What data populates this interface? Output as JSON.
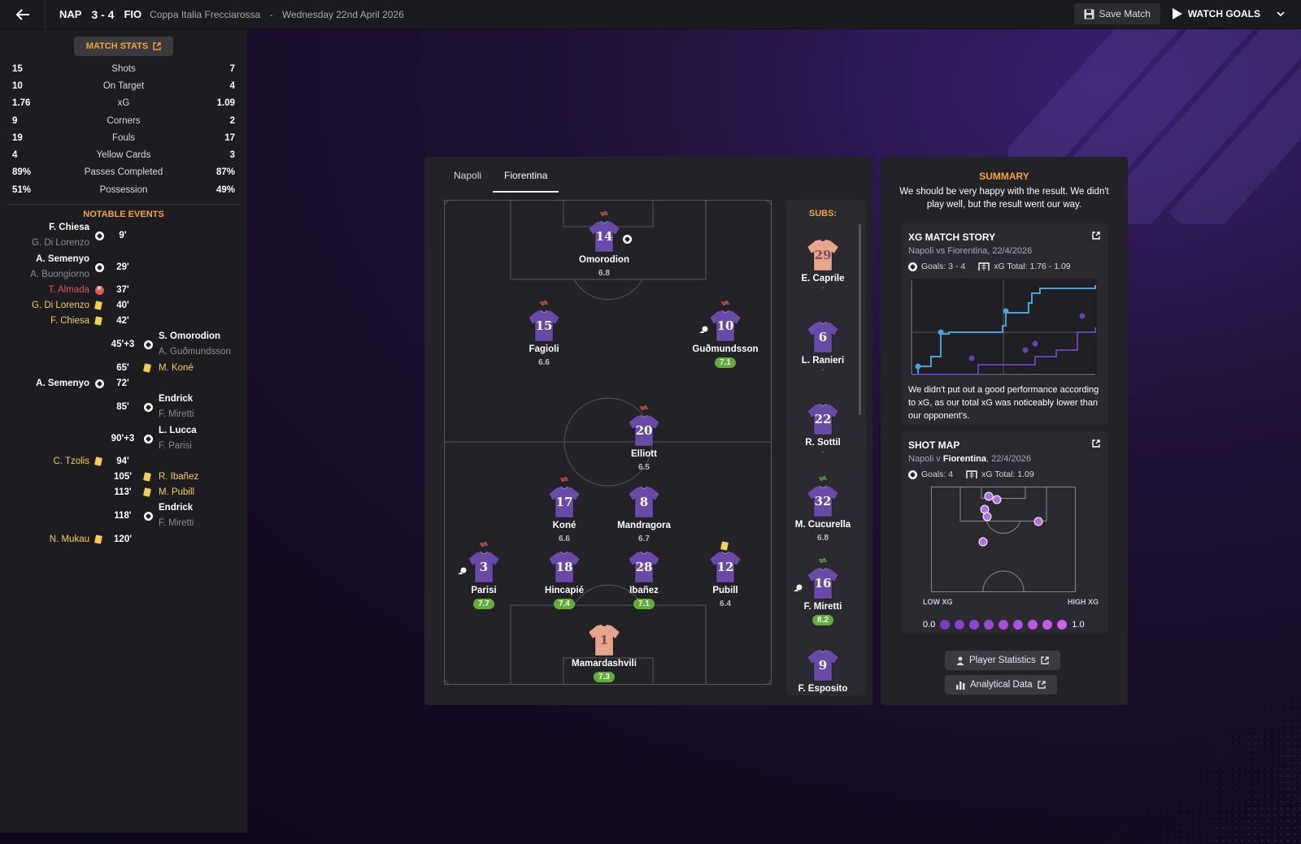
{
  "header": {
    "home_short": "NAP",
    "score": "3 - 4",
    "away_short": "FIO",
    "competition": "Coppa Italia Frecciarossa",
    "separator": "-",
    "date": "Wednesday 22nd April 2026",
    "save_label": "Save Match",
    "watch_label": "WATCH GOALS"
  },
  "match_stats": {
    "button_label": "MATCH STATS",
    "rows": [
      {
        "home": "15",
        "label": "Shots",
        "away": "7"
      },
      {
        "home": "10",
        "label": "On Target",
        "away": "4"
      },
      {
        "home": "1.76",
        "label": "xG",
        "away": "1.09"
      },
      {
        "home": "9",
        "label": "Corners",
        "away": "2"
      },
      {
        "home": "19",
        "label": "Fouls",
        "away": "17"
      },
      {
        "home": "4",
        "label": "Yellow Cards",
        "away": "3"
      },
      {
        "home": "89%",
        "label": "Passes Completed",
        "away": "87%"
      },
      {
        "home": "51%",
        "label": "Possession",
        "away": "49%"
      }
    ]
  },
  "notable_events": {
    "title": "NOTABLE EVENTS",
    "items": [
      {
        "side": "home",
        "type": "goal",
        "minute": "9'",
        "main": "F. Chiesa",
        "assist": "G. Di Lorenzo"
      },
      {
        "side": "home",
        "type": "goal",
        "minute": "29'",
        "main": "A. Semenyo",
        "assist": "A. Buongiorno"
      },
      {
        "side": "home",
        "type": "red",
        "minute": "37'",
        "main": "T. Almada",
        "assist": ""
      },
      {
        "side": "home",
        "type": "yellow",
        "minute": "40'",
        "main": "G. Di Lorenzo",
        "assist": ""
      },
      {
        "side": "home",
        "type": "yellow",
        "minute": "42'",
        "main": "F. Chiesa",
        "assist": ""
      },
      {
        "side": "away",
        "type": "goal",
        "minute": "45'+3",
        "main": "S. Omorodion",
        "assist": "A. Guðmundsson"
      },
      {
        "side": "away",
        "type": "yellow",
        "minute": "65'",
        "main": "M. Koné",
        "assist": ""
      },
      {
        "side": "home",
        "type": "goal",
        "minute": "72'",
        "main": "A. Semenyo",
        "assist": ""
      },
      {
        "side": "away",
        "type": "goal",
        "minute": "85'",
        "main": "Endrick",
        "assist": "F. Miretti"
      },
      {
        "side": "away",
        "type": "goal",
        "minute": "90'+3",
        "main": "L. Lucca",
        "assist": "F. Parisi"
      },
      {
        "side": "home",
        "type": "yellow",
        "minute": "94'",
        "main": "C. Tzolis",
        "assist": ""
      },
      {
        "side": "away",
        "type": "yellow",
        "minute": "105'",
        "main": "R. Ibañez",
        "assist": ""
      },
      {
        "side": "away",
        "type": "yellow",
        "minute": "113'",
        "main": "M. Pubill",
        "assist": ""
      },
      {
        "side": "away",
        "type": "goal",
        "minute": "118'",
        "main": "Endrick",
        "assist": "F. Miretti"
      },
      {
        "side": "home",
        "type": "yellow",
        "minute": "120'",
        "main": "N. Mukau",
        "assist": ""
      }
    ]
  },
  "tabs": [
    "Napoli",
    "Fiorentina"
  ],
  "lineup": {
    "players": [
      {
        "num": "14",
        "name": "Omorodion",
        "rating": "6.8",
        "good": false,
        "subbed": true,
        "goal": true,
        "gk": false
      },
      {
        "num": "15",
        "name": "Fagioli",
        "rating": "6.6",
        "good": false,
        "subbed": true,
        "goal": false,
        "gk": false
      },
      {
        "num": "10",
        "name": "Guðmundsson",
        "rating": "7.1",
        "good": true,
        "subbed": true,
        "assist": true,
        "gk": false
      },
      {
        "num": "20",
        "name": "Elliott",
        "rating": "6.5",
        "good": false,
        "subbed": true,
        "gk": false
      },
      {
        "num": "17",
        "name": "Koné",
        "rating": "6.6",
        "good": false,
        "subbed": true,
        "gk": false
      },
      {
        "num": "8",
        "name": "Mandragora",
        "rating": "6.7",
        "good": false,
        "gk": false
      },
      {
        "num": "3",
        "name": "Parisi",
        "rating": "7.7",
        "good": true,
        "subbed": true,
        "assist": true,
        "gk": false
      },
      {
        "num": "18",
        "name": "Hincapié",
        "rating": "7.4",
        "good": true,
        "gk": false
      },
      {
        "num": "28",
        "name": "Ibañez",
        "rating": "7.1",
        "good": true,
        "gk": false
      },
      {
        "num": "12",
        "name": "Pubill",
        "rating": "6.4",
        "good": false,
        "yellow": true,
        "gk": false
      },
      {
        "num": "1",
        "name": "Mamardashvili",
        "rating": "7.3",
        "good": true,
        "gk": true
      }
    ]
  },
  "subs": {
    "title": "SUBS:",
    "players": [
      {
        "num": "29",
        "name": "E. Caprile",
        "rating": "-",
        "good": false,
        "gk": true
      },
      {
        "num": "6",
        "name": "L. Ranieri",
        "rating": "-",
        "good": false,
        "gk": false
      },
      {
        "num": "22",
        "name": "R. Sottil",
        "rating": "-",
        "good": false,
        "gk": false
      },
      {
        "num": "32",
        "name": "M. Cucurella",
        "rating": "6.8",
        "good": false,
        "subin": true,
        "gk": false
      },
      {
        "num": "16",
        "name": "F. Miretti",
        "rating": "8.2",
        "good": true,
        "subin": true,
        "assist": true,
        "gk": false
      },
      {
        "num": "9",
        "name": "F. Esposito",
        "rating": "",
        "good": false,
        "gk": false
      }
    ]
  },
  "summary": {
    "title": "SUMMARY",
    "text": "We should be very happy with the result. We didn't play well, but the result went our way."
  },
  "xg_story": {
    "title": "XG MATCH STORY",
    "subtitle": "Napoli vs Fiorentina, 22/4/2026",
    "goals": "Goals: 3 - 4",
    "xg_total": "xG Total: 1.76 - 1.09",
    "text": "We didn't put out a good performance according to xG, as our total xG was noticeably lower than our opponent's."
  },
  "shot_map": {
    "title": "SHOT MAP",
    "subtitle_pre": "Napoli v ",
    "subtitle_team": "Fiorentina",
    "subtitle_post": ", 22/4/2026",
    "goals": "Goals: 4",
    "xg_total": "xG Total: 1.09",
    "low_label": "LOW XG",
    "high_label": "HIGH XG",
    "min": "0.0",
    "max": "1.0"
  },
  "buttons": {
    "player_stats": "Player Statistics",
    "analytical": "Analytical Data"
  },
  "colors": {
    "accent": "#f3a33c",
    "home_line": "#4aa3d8",
    "away_line": "#6a3fb5",
    "rating_good": "#5fae3a",
    "shirt": "#6a4aa8",
    "gk_shirt": "#e7a58a"
  }
}
